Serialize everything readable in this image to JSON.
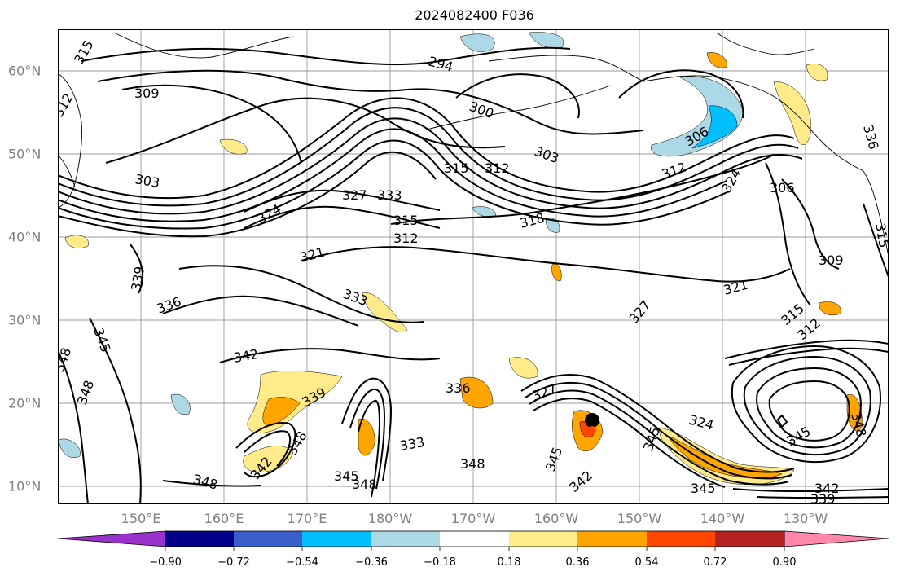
{
  "title": "2024082400 F036",
  "lat_labels": [
    "60°N",
    "50°N",
    "40°N",
    "30°N",
    "20°N",
    "10°N"
  ],
  "lon_labels": [
    "150°E",
    "160°E",
    "170°E",
    "180°W",
    "170°W",
    "160°W",
    "150°W",
    "140°W",
    "130°W"
  ],
  "colorbar": {
    "tick_labels": [
      "−0.90",
      "−0.72",
      "−0.54",
      "−0.36",
      "−0.18",
      "0.18",
      "0.36",
      "0.54",
      "0.72",
      "0.90"
    ],
    "colors": [
      "#9932cc",
      "#00008b",
      "#3a5fcd",
      "#00bfff",
      "#add8e6",
      "#ffffff",
      "#ffeb8a",
      "#ffa500",
      "#ff4500",
      "#b22222",
      "#ff88aa",
      "#ff88aa"
    ]
  },
  "contour_labels": [
    "315",
    "309",
    "312",
    "294",
    "300",
    "303",
    "306",
    "303",
    "315",
    "312",
    "312",
    "327",
    "333",
    "324",
    "315",
    "312",
    "318",
    "321",
    "324",
    "306",
    "309",
    "321",
    "327",
    "339",
    "336",
    "333",
    "336",
    "345",
    "348",
    "348",
    "342",
    "339",
    "348",
    "348",
    "345",
    "342",
    "333",
    "348",
    "345",
    "342",
    "324",
    "345",
    "345",
    "342",
    "339",
    "348",
    "315",
    "312",
    "336",
    "345",
    "348",
    "327",
    "315"
  ],
  "map": {
    "background": "#ffffff",
    "contour_color": "#000000",
    "grid_color": "#808080",
    "coast_color": "#000000",
    "marker": "typhoon-center"
  }
}
